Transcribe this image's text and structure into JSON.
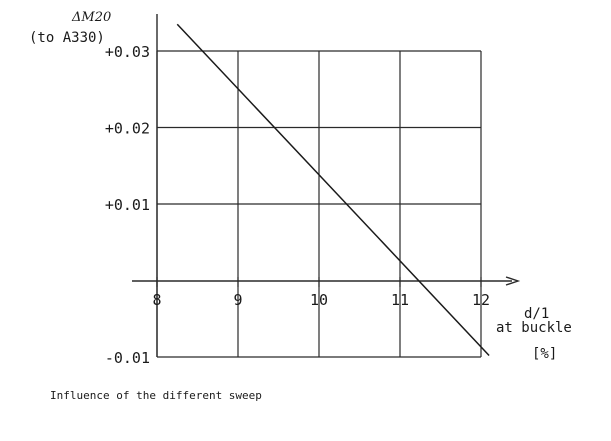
{
  "chart_data": {
    "type": "line",
    "ylabel": "ΔM20",
    "ylabel_sub": "(to A330)",
    "xlabel_lines": [
      "d/1",
      "at buckle",
      "[%]"
    ],
    "caption": "Influence of the different sweep",
    "xlim": [
      8,
      12
    ],
    "ylim": [
      -0.01,
      0.03
    ],
    "grid": true,
    "x_ticks": [
      {
        "value": 8,
        "label": "8"
      },
      {
        "value": 9,
        "label": "9"
      },
      {
        "value": 10,
        "label": "10"
      },
      {
        "value": 11,
        "label": "11"
      },
      {
        "value": 12,
        "label": "12"
      }
    ],
    "y_ticks": [
      {
        "value": 0.03,
        "label": "+0.03"
      },
      {
        "value": 0.02,
        "label": "+0.02"
      },
      {
        "value": 0.01,
        "label": "+0.01"
      },
      {
        "value": -0.01,
        "label": "-0.01"
      }
    ],
    "series": [
      {
        "x": [
          8.25,
          12.1
        ],
        "y": [
          0.0335,
          -0.0098
        ]
      }
    ]
  }
}
